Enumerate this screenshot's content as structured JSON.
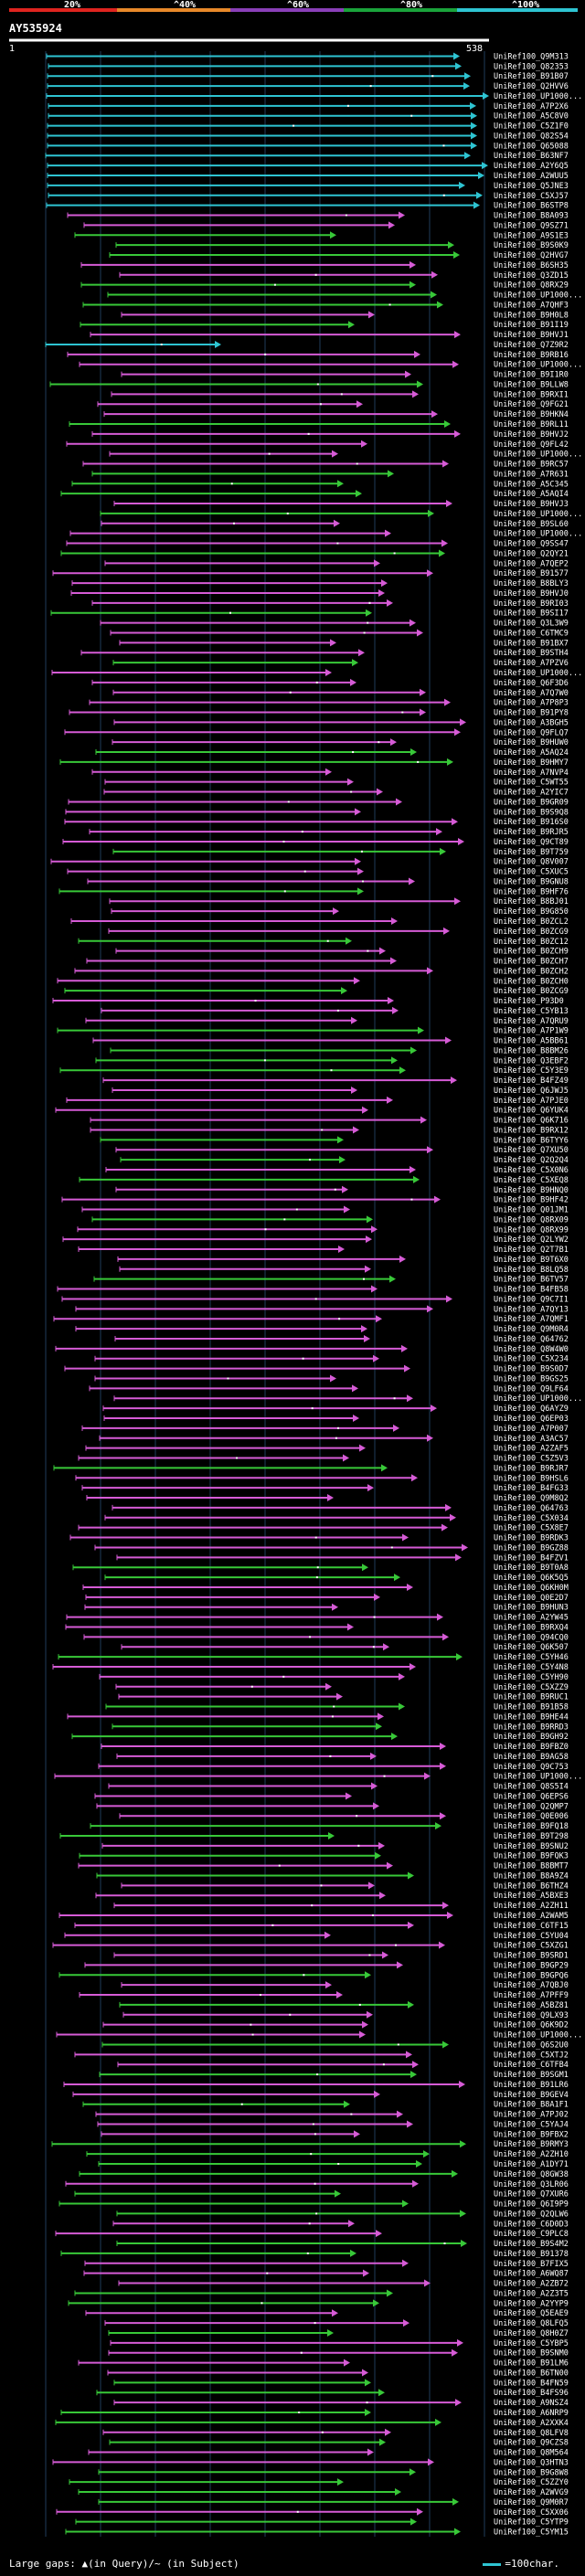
{
  "legend": {
    "labels": [
      "20%",
      "^40%",
      "^60%",
      "^80%",
      "^100%"
    ],
    "colors": [
      "#e0241f",
      "#e8892a",
      "#8a3fb8",
      "#1aa33b",
      "#2ec4d2"
    ]
  },
  "query": {
    "name": "AY535924",
    "ruler_start": "1",
    "ruler_end": "538"
  },
  "colors": {
    "cyan": "#2ec4d2",
    "magenta": "#d65bd6",
    "green": "#38c838",
    "grid": "#1f3b5a",
    "label": "#ffffff"
  },
  "hits": [
    "UniRef100_Q9M313",
    "UniRef100_Q82353",
    "UniRef100_B91B07",
    "UniRef100_Q2HVV6",
    "UniRef100_UP1000...",
    "UniRef100_A7P2X6",
    "UniRef100_A5C8V0",
    "UniRef100_C5Z1F0",
    "UniRef100_Q82S54",
    "UniRef100_Q65088",
    "UniRef100_B63NF7",
    "UniRef100_A2Y6Q5",
    "UniRef100_A2WUU5",
    "UniRef100_Q5JNE3",
    "UniRef100_C5XJ57",
    "UniRef100_B6STP8",
    "UniRef100_B8A093",
    "UniRef100_Q9SZ71",
    "UniRef100_A9S1E3",
    "UniRef100_B9S0K9",
    "UniRef100_Q2HVG7",
    "UniRef100_B6SH35",
    "UniRef100_Q3ZD15",
    "UniRef100_Q8RX29",
    "UniRef100_UP1000...",
    "UniRef100_A7QHF3",
    "UniRef100_B9H0L8",
    "UniRef100_B91I19",
    "UniRef100_B9HVJ1",
    "UniRef100_Q7Z9R2",
    "UniRef100_B9RB16",
    "UniRef100_UP1000...",
    "UniRef100_B9I1R0",
    "UniRef100_B9LLW8",
    "UniRef100_B9RXI1",
    "UniRef100_Q9FG21",
    "UniRef100_B9HKN4",
    "UniRef100_B9RL11",
    "UniRef100_B9HVJ2",
    "UniRef100_Q9FL42",
    "UniRef100_UP1000...",
    "UniRef100_B9RC57",
    "UniRef100_A7R631",
    "UniRef100_A5C345",
    "UniRef100_A5AQI4",
    "UniRef100_B9HVJ3",
    "UniRef100_UP1000...",
    "UniRef100_B9SL60",
    "UniRef100_UP1000...",
    "UniRef100_Q9SS47",
    "UniRef100_Q2QY21",
    "UniRef100_A7QEP2",
    "UniRef100_B91577",
    "UniRef100_B8BLY3",
    "UniRef100_B9HVJ0",
    "UniRef100_B9RI03",
    "UniRef100_B9SI17",
    "UniRef100_Q3L3W9",
    "UniRef100_C6TMC9",
    "UniRef100_B91BX7",
    "UniRef100_B9STH4",
    "UniRef100_A7PZV6",
    "UniRef100_UP1000...",
    "UniRef100_Q6F3D6",
    "UniRef100_A7Q7W0",
    "UniRef100_A7P8P3",
    "UniRef100_B91PY8",
    "UniRef100_A3BGH5",
    "UniRef100_Q9FLQ7",
    "UniRef100_B9HUW0",
    "UniRef100_A5AQ24",
    "UniRef100_B9HMY7",
    "UniRef100_A7NVP4",
    "UniRef100_C5WT55",
    "UniRef100_A2YIC7",
    "UniRef100_B9GR09",
    "UniRef100_B9S9Q8",
    "UniRef100_B916S0",
    "UniRef100_B9RJR5",
    "UniRef100_Q9CT89",
    "UniRef100_B9T759",
    "UniRef100_Q8V007",
    "UniRef100_C5XUC5",
    "UniRef100_B9GNU8",
    "UniRef100_B9HF76",
    "UniRef100_B8BJ01",
    "UniRef100_B9G850",
    "UniRef100_B0ZCL2",
    "UniRef100_B0ZCG9",
    "UniRef100_B0ZC12",
    "UniRef100_B0ZCH9",
    "UniRef100_B0ZCH7",
    "UniRef100_B0ZCH2",
    "UniRef100_B0ZCH0",
    "UniRef100_B0ZCG9",
    "UniRef100_P93D0",
    "UniRef100_C5YB13",
    "UniRef100_A7QRU9",
    "UniRef100_A7P1W9",
    "UniRef100_A5BB61",
    "UniRef100_B8BM26",
    "UniRef100_Q3EBF2",
    "UniRef100_C5Y3E9",
    "UniRef100_B4FZ49",
    "UniRef100_Q6JWJ5",
    "UniRef100_A7PJE0",
    "UniRef100_Q6YUK4",
    "UniRef100_Q6K716",
    "UniRef100_B9RX12",
    "UniRef100_B6TYY6",
    "UniRef100_Q7XU50",
    "UniRef100_Q2Q2Q4",
    "UniRef100_C5X0N6",
    "UniRef100_C5XEQ8",
    "UniRef100_B9HNQ0",
    "UniRef100_B9HF42",
    "UniRef100_Q01JM1",
    "UniRef100_Q8RX09",
    "UniRef100_Q8RX99",
    "UniRef100_Q2LYW2",
    "UniRef100_Q2T7B1",
    "UniRef100_B9T6X0",
    "UniRef100_B8LQ58",
    "UniRef100_B6TV57",
    "UniRef100_B4FB58",
    "UniRef100_Q9C7I1",
    "UniRef100_A7QY13",
    "UniRef100_A7QMF1",
    "UniRef100_Q9M0R4",
    "UniRef100_Q64762",
    "UniRef100_Q8W4W0",
    "UniRef100_C5X234",
    "UniRef100_B9S0D7",
    "UniRef100_B9GS25",
    "UniRef100_Q9LF64",
    "UniRef100_UP1000...",
    "UniRef100_Q6AYZ9",
    "UniRef100_Q6EP03",
    "UniRef100_A7P007",
    "UniRef100_A3AC57",
    "UniRef100_A2ZAF5",
    "UniRef100_C5Z5V3",
    "UniRef100_B9RJR7",
    "UniRef100_B9HSL6",
    "UniRef100_B4FG33",
    "UniRef100_Q9M8Q2",
    "UniRef100_Q64763",
    "UniRef100_C5X034",
    "UniRef100_C5X8E7",
    "UniRef100_B9RDK3",
    "UniRef100_B9GZ88",
    "UniRef100_B4FZV1",
    "UniRef100_B9T0A8",
    "UniRef100_Q6K5Q5",
    "UniRef100_Q6KH0M",
    "UniRef100_Q0E2D7",
    "UniRef100_B9HUN3",
    "UniRef100_A2YW45",
    "UniRef100_B9RXQ4",
    "UniRef100_Q94CQ0",
    "UniRef100_Q6K507",
    "UniRef100_C5YH46",
    "UniRef100_C5Y4N8",
    "UniRef100_C5YH90",
    "UniRef100_C5XZZ9",
    "UniRef100_B9RUC1",
    "UniRef100_B91B58",
    "UniRef100_B9HE44",
    "UniRef100_B9RRD3",
    "UniRef100_B9GH92",
    "UniRef100_B9FBZ0",
    "UniRef100_B9AG58",
    "UniRef100_Q9C753",
    "UniRef100_UP1000...",
    "UniRef100_Q8S5I4",
    "UniRef100_Q6EPS6",
    "UniRef100_Q2QMP7",
    "UniRef100_Q0E006",
    "UniRef100_B9FQ18",
    "UniRef100_B9T298",
    "UniRef100_B9SNU2",
    "UniRef100_B9FQK3",
    "UniRef100_B8BMT7",
    "UniRef100_B8A9Z4",
    "UniRef100_B6THZ4",
    "UniRef100_A5BXE3",
    "UniRef100_A2ZH11",
    "UniRef100_A2WAM5",
    "UniRef100_C6TF15",
    "UniRef100_C5YU04",
    "UniRef100_C5XZG1",
    "UniRef100_B9SRD1",
    "UniRef100_B9GP29",
    "UniRef100_B9GPQ6",
    "UniRef100_A7QBJ0",
    "UniRef100_A7PFF9",
    "UniRef100_A5BZ81",
    "UniRef100_Q9LX93",
    "UniRef100_Q6K9D2",
    "UniRef100_UP1000...",
    "UniRef100_Q6S2U0",
    "UniRef100_C5XTJ2",
    "UniRef100_C6TFB4",
    "UniRef100_B9SGM1",
    "UniRef100_B91LR6",
    "UniRef100_B9GEV4",
    "UniRef100_B8A1F1",
    "UniRef100_A7PJ02",
    "UniRef100_C5YAJ4",
    "UniRef100_B9FBX2",
    "UniRef100_B9RMY3",
    "UniRef100_A2ZH10",
    "UniRef100_A1DY71",
    "UniRef100_Q8GW38",
    "UniRef100_Q3LR06",
    "UniRef100_Q7XUR6",
    "UniRef100_Q6I9P9",
    "UniRef100_Q2QLW6",
    "UniRef100_C6D0D3",
    "UniRef100_C9PLC8",
    "UniRef100_B9S4M2",
    "UniRef100_B91378",
    "UniRef100_B7FIX5",
    "UniRef100_A6WQ87",
    "UniRef100_A2ZB72",
    "UniRef100_A2Z3T5",
    "UniRef100_A2YYP9",
    "UniRef100_Q5EAE9",
    "UniRef100_Q8LFQ5",
    "UniRef100_Q8H0Z7",
    "UniRef100_C5YBP5",
    "UniRef100_B9SNM0",
    "UniRef100_B91LM6",
    "UniRef100_B6TN00",
    "UniRef100_B4FN59",
    "UniRef100_B4FS96",
    "UniRef100_A9NSZ4",
    "UniRef100_A6NRP9",
    "UniRef100_A2XXK4",
    "UniRef100_Q8LFV8",
    "UniRef100_Q9CZS8",
    "UniRef100_Q8M564",
    "UniRef100_Q3HTN3",
    "UniRef100_B9G8W8",
    "UniRef100_C5ZZY0",
    "UniRef100_A2WVG9",
    "UniRef100_Q9M0R7",
    "UniRef100_C5XX06",
    "UniRef100_C5YTP9",
    "UniRef100_C5YM15"
  ],
  "footer": {
    "left": "Large gaps: ▲(in Query)/~ (in Subject)",
    "right": "=100char."
  }
}
